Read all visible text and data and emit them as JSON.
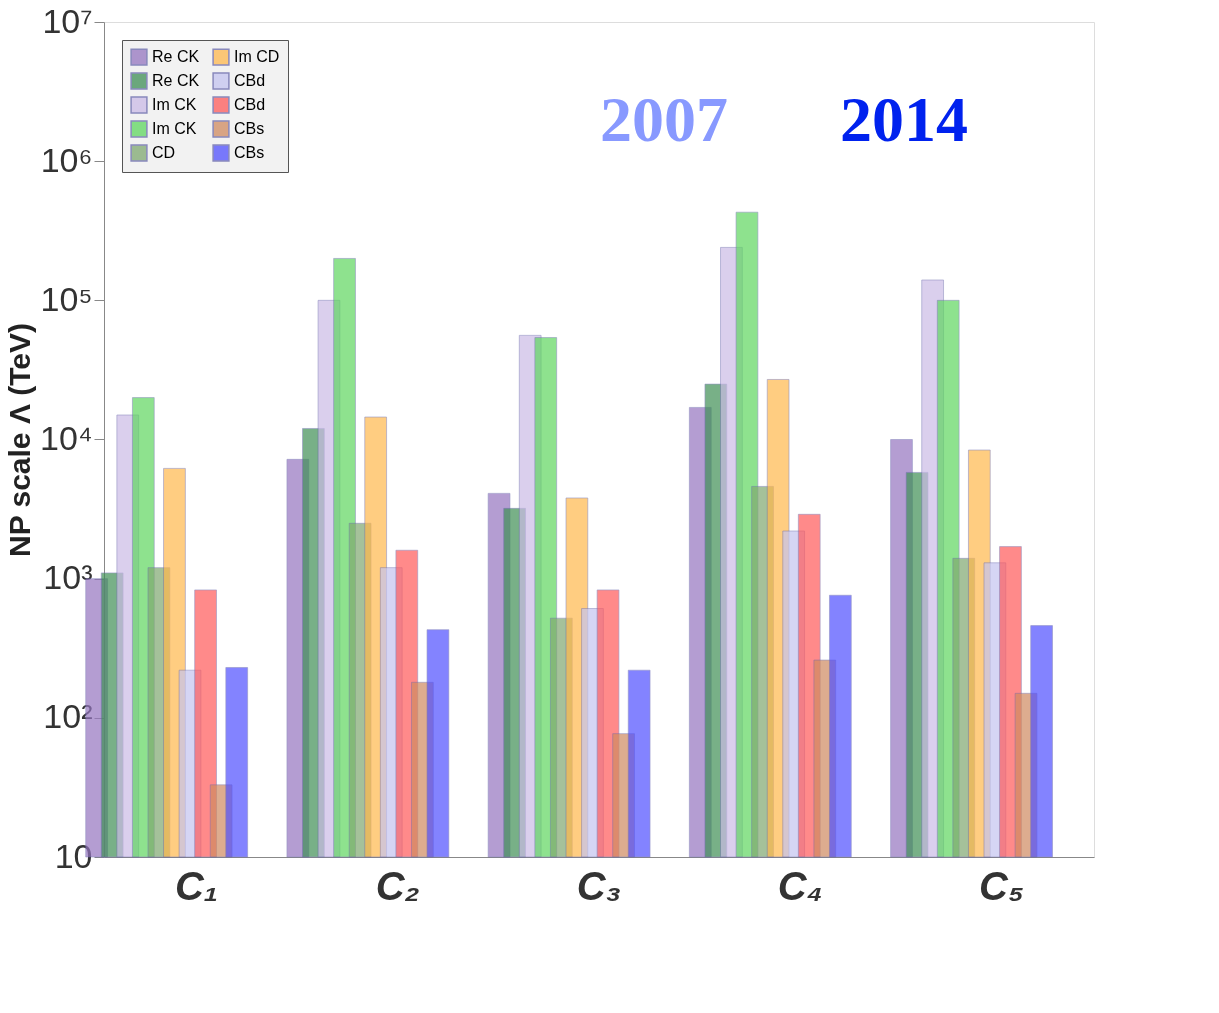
{
  "chart_data": {
    "type": "bar",
    "ylabel": "NP scale Λ (TeV)",
    "categories": [
      "C₁",
      "C₂",
      "C₃",
      "C₄",
      "C₅"
    ],
    "series": [
      {
        "name": "Re CK",
        "color": "#9575c0",
        "values": [
          1000,
          7200,
          4100,
          17000,
          10000
        ]
      },
      {
        "name": "Re CK",
        "color": "#3f8f55",
        "values": [
          1100,
          12000,
          3200,
          25000,
          5800
        ]
      },
      {
        "name": "Im CK",
        "color": "#cbbbe6",
        "values": [
          15000,
          100000,
          56000,
          240000,
          140000
        ]
      },
      {
        "name": "Im CK",
        "color": "#5fd65f",
        "values": [
          20000,
          200000,
          54000,
          430000,
          100000
        ]
      },
      {
        "name": "CD",
        "color": "#7fa870",
        "values": [
          1200,
          2500,
          520,
          4600,
          1400
        ]
      },
      {
        "name": "Im CD",
        "color": "#ffb84d",
        "values": [
          6200,
          14500,
          3800,
          27000,
          8400
        ]
      },
      {
        "name": "CBd",
        "color": "#c4c4f0",
        "values": [
          220,
          1200,
          610,
          2200,
          1300
        ]
      },
      {
        "name": "CBd",
        "color": "#ff5a5a",
        "values": [
          830,
          1600,
          830,
          2900,
          1700
        ]
      },
      {
        "name": "CBs",
        "color": "#d08a60",
        "values": [
          33,
          180,
          77,
          260,
          150
        ]
      },
      {
        "name": "CBs",
        "color": "#5050ff",
        "values": [
          230,
          430,
          220,
          760,
          460
        ]
      }
    ],
    "log": true,
    "ylim": [
      10,
      10000000
    ],
    "yticks": [
      10,
      {
        "value": 100,
        "label": "10²"
      },
      {
        "value": 1000,
        "label": "10³"
      },
      {
        "value": 10000,
        "label": "10⁴"
      },
      {
        "value": 100000,
        "label": "10⁵"
      },
      {
        "value": 1000000,
        "label": "10⁶"
      },
      {
        "value": 10000000,
        "label": "10⁷"
      }
    ],
    "grid": false,
    "legend": "top left",
    "annotations": [
      "2007",
      "2014"
    ]
  }
}
